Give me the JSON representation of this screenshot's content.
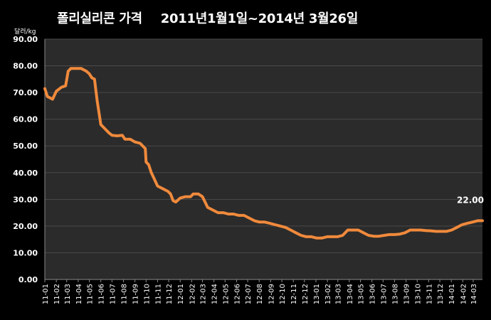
{
  "title_main": "폴리실리콘 가격",
  "title_range": "2011년1월1일~2014년 3월26일",
  "chart_data": {
    "type": "line",
    "title": "폴리실리콘 가격 2011년1월1일~2014년 3월26일",
    "ylabel": "달러/kg",
    "ylim": [
      0,
      90
    ],
    "yticks": [
      "0.00",
      "10.00",
      "20.00",
      "30.00",
      "40.00",
      "50.00",
      "60.00",
      "70.00",
      "80.00",
      "90.00"
    ],
    "xticks": [
      "11-01",
      "11-02",
      "11-03",
      "11-04",
      "11-05",
      "11-06",
      "11-07",
      "11-08",
      "11-09",
      "11-10",
      "11-11",
      "11-12",
      "12-01",
      "12-02",
      "12-03",
      "12-04",
      "12-05",
      "12-06",
      "12-07",
      "12-08",
      "12-09",
      "12-10",
      "12-11",
      "12-12",
      "13-01",
      "13-02",
      "13-03",
      "13-04",
      "13-05",
      "13-06",
      "13-07",
      "13-08",
      "13-09",
      "13-10",
      "13-11",
      "13-12",
      "14-01",
      "14-02",
      "14-03"
    ],
    "grid": true,
    "line_color": "#f08a3c",
    "series": [
      {
        "x": [
          "2011-01-01",
          "2011-01-08",
          "2011-01-22",
          "2011-02-01",
          "2011-02-15",
          "2011-02-26",
          "2011-03-05",
          "2011-03-12",
          "2011-03-26",
          "2011-04-09",
          "2011-04-23",
          "2011-05-01",
          "2011-05-08",
          "2011-05-15",
          "2011-05-22",
          "2011-06-01",
          "2011-06-08",
          "2011-06-22",
          "2011-07-01",
          "2011-07-15",
          "2011-07-29",
          "2011-08-05",
          "2011-08-19",
          "2011-09-01",
          "2011-09-15",
          "2011-09-29",
          "2011-10-01",
          "2011-10-08",
          "2011-10-15",
          "2011-10-22",
          "2011-11-01",
          "2011-11-15",
          "2011-11-29",
          "2011-12-06",
          "2011-12-13",
          "2011-12-20",
          "2012-01-01",
          "2012-01-15",
          "2012-01-29",
          "2012-02-05",
          "2012-02-19",
          "2012-03-01",
          "2012-03-08",
          "2012-03-15",
          "2012-03-29",
          "2012-04-12",
          "2012-04-26",
          "2012-05-10",
          "2012-05-24",
          "2012-06-07",
          "2012-06-21",
          "2012-07-05",
          "2012-07-19",
          "2012-08-02",
          "2012-08-16",
          "2012-08-30",
          "2012-09-13",
          "2012-09-27",
          "2012-10-11",
          "2012-10-25",
          "2012-11-08",
          "2012-11-22",
          "2012-12-06",
          "2012-12-20",
          "2013-01-03",
          "2013-01-17",
          "2013-01-31",
          "2013-02-14",
          "2013-02-28",
          "2013-03-14",
          "2013-03-28",
          "2013-04-11",
          "2013-04-25",
          "2013-05-09",
          "2013-05-23",
          "2013-06-06",
          "2013-06-20",
          "2013-07-04",
          "2013-07-18",
          "2013-08-01",
          "2013-08-15",
          "2013-08-29",
          "2013-09-12",
          "2013-09-26",
          "2013-10-10",
          "2013-10-24",
          "2013-11-07",
          "2013-11-21",
          "2013-12-05",
          "2013-12-19",
          "2014-01-02",
          "2014-01-16",
          "2014-01-30",
          "2014-02-13",
          "2014-02-27",
          "2014-03-13",
          "2014-03-26"
        ],
        "y": [
          71.5,
          68.5,
          67.5,
          70.5,
          72,
          72.5,
          78,
          79,
          79,
          79,
          78,
          77,
          75.5,
          75,
          67,
          58,
          57,
          55,
          54,
          53.8,
          54,
          52.5,
          52.5,
          51.5,
          51,
          49,
          44,
          43,
          40,
          38,
          35,
          34,
          33,
          32,
          29.5,
          29,
          30.5,
          31,
          31,
          32,
          32,
          31,
          29,
          27,
          26,
          25,
          25,
          24.5,
          24.5,
          24,
          24,
          23,
          22,
          21.5,
          21.5,
          21,
          20.5,
          20,
          19.5,
          18.5,
          17.5,
          16.5,
          16,
          16,
          15.5,
          15.5,
          16,
          16,
          16,
          16.5,
          18.5,
          18.5,
          18.5,
          17.5,
          16.5,
          16.2,
          16.2,
          16.5,
          16.8,
          16.8,
          17,
          17.5,
          18.5,
          18.5,
          18.5,
          18.3,
          18.2,
          18,
          18,
          18,
          18.5,
          19.5,
          20.5,
          21,
          21.5,
          22,
          22
        ]
      }
    ],
    "annotations": [
      {
        "text": "22.00",
        "x": "2014-03-26",
        "y": 22
      }
    ]
  }
}
